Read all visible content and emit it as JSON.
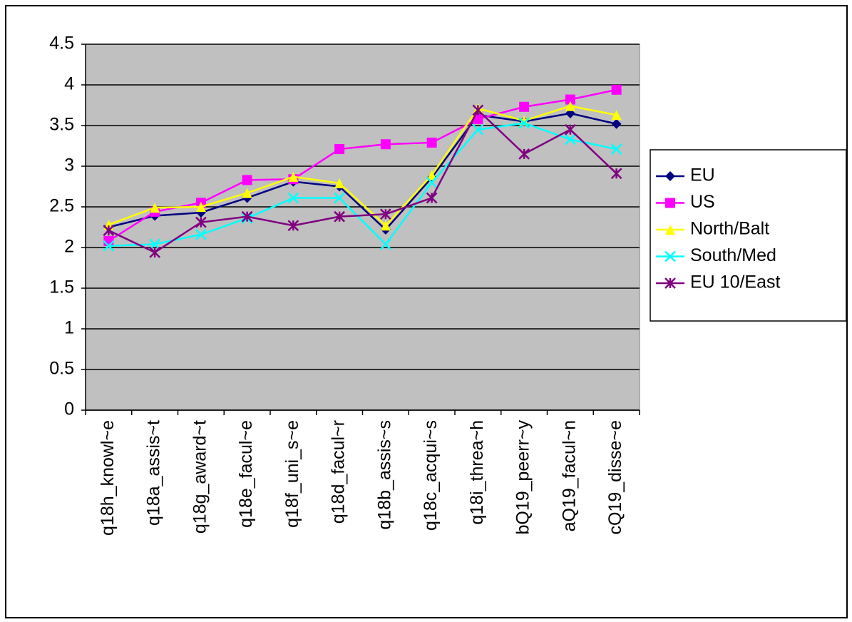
{
  "chart_data": {
    "type": "line",
    "categories": [
      "q18h_knowl~e",
      "q18a_assis~t",
      "q18g_award~t",
      "q18e_facul~e",
      "q18f_uni_s~e",
      "q18d_facul~r",
      "q18b_assis~s",
      "q18c_acqui~s",
      "q18i_threa~h",
      "bQ19_peerr~y",
      "aQ19_facul~n",
      "cQ19_disse~e"
    ],
    "series": [
      {
        "name": "EU",
        "color": "#000080",
        "marker": "diamond",
        "values": [
          2.25,
          2.39,
          2.43,
          2.61,
          2.81,
          2.75,
          2.22,
          2.86,
          3.63,
          3.55,
          3.65,
          3.52
        ]
      },
      {
        "name": "US",
        "color": "#ff00ff",
        "marker": "square",
        "values": [
          2.08,
          2.44,
          2.55,
          2.83,
          2.84,
          3.21,
          3.27,
          3.29,
          3.58,
          3.73,
          3.82,
          3.94
        ]
      },
      {
        "name": "North/Balt",
        "color": "#ffff00",
        "marker": "triangle",
        "values": [
          2.28,
          2.49,
          2.5,
          2.67,
          2.87,
          2.79,
          2.27,
          2.89,
          3.71,
          3.56,
          3.74,
          3.63
        ]
      },
      {
        "name": "South/Med",
        "color": "#00ffff",
        "marker": "x",
        "values": [
          2.02,
          2.04,
          2.16,
          2.36,
          2.61,
          2.61,
          2.04,
          2.8,
          3.45,
          3.53,
          3.33,
          3.21
        ]
      },
      {
        "name": "EU 10/East",
        "color": "#800080",
        "marker": "star",
        "values": [
          2.21,
          1.94,
          2.31,
          2.38,
          2.27,
          2.38,
          2.41,
          2.61,
          3.69,
          3.15,
          3.45,
          2.91
        ]
      }
    ],
    "ylim": [
      0,
      4.5
    ],
    "yticks": [
      0,
      0.5,
      1,
      1.5,
      2,
      2.5,
      3,
      3.5,
      4,
      4.5
    ],
    "grid": true,
    "legend": "right",
    "plot_background": "#c0c0c0"
  }
}
